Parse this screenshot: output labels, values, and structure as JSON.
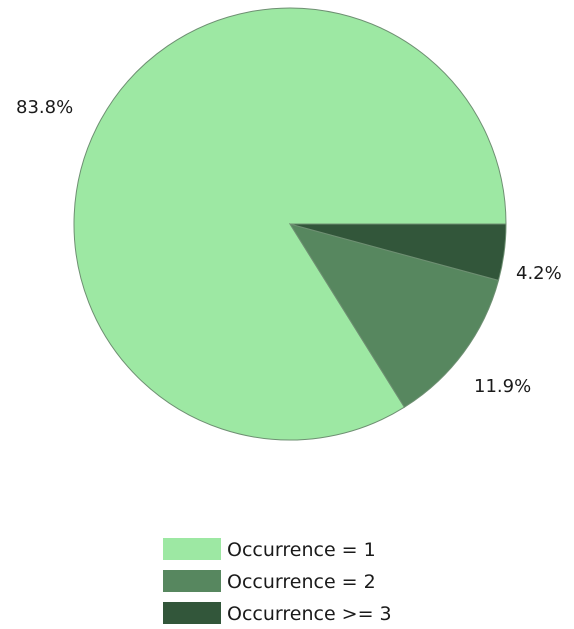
{
  "chart_data": {
    "type": "pie",
    "title": "",
    "slices": [
      {
        "label": "Occurrence = 1",
        "value": 83.8,
        "value_label": "83.8%",
        "color": "#9de8a3"
      },
      {
        "label": "Occurrence = 2",
        "value": 11.9,
        "value_label": "11.9%",
        "color": "#57875f"
      },
      {
        "label": "Occurrence >= 3",
        "value": 4.2,
        "value_label": "4.2%",
        "color": "#32563a"
      }
    ],
    "legend_position": "bottom-center",
    "edge_color": "#6e8f72"
  }
}
